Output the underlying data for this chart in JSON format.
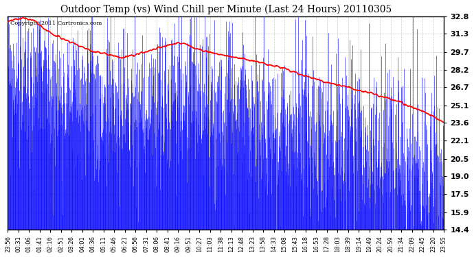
{
  "title": "Outdoor Temp (vs) Wind Chill per Minute (Last 24 Hours) 20110305",
  "copyright_text": "Copyright 2011 Cartronics.com",
  "background_color": "#ffffff",
  "plot_bg_color": "#ffffff",
  "grid_color": "#c8c8c8",
  "blue_color": "#0000ff",
  "red_color": "#ff0000",
  "yticks": [
    14.4,
    15.9,
    17.5,
    19.0,
    20.5,
    22.1,
    23.6,
    25.1,
    26.7,
    28.2,
    29.7,
    31.3,
    32.8
  ],
  "ylim": [
    14.4,
    32.8
  ],
  "num_minutes": 1440,
  "x_tick_labels": [
    "23:56",
    "00:31",
    "01:06",
    "01:41",
    "02:16",
    "02:51",
    "03:26",
    "04:01",
    "04:36",
    "05:11",
    "05:46",
    "06:21",
    "06:56",
    "07:31",
    "08:06",
    "08:41",
    "09:16",
    "09:51",
    "10:27",
    "11:03",
    "11:38",
    "12:13",
    "12:48",
    "13:23",
    "13:58",
    "14:33",
    "15:08",
    "15:43",
    "16:18",
    "16:53",
    "17:28",
    "18:03",
    "18:39",
    "19:14",
    "19:49",
    "20:24",
    "20:59",
    "21:34",
    "22:09",
    "22:45",
    "23:20",
    "23:55"
  ],
  "wc_keypoints_x": [
    0,
    40,
    80,
    150,
    280,
    380,
    540,
    580,
    620,
    700,
    800,
    900,
    1000,
    1100,
    1200,
    1300,
    1380,
    1440
  ],
  "wc_keypoints_y": [
    32.3,
    32.7,
    32.5,
    31.2,
    29.8,
    29.2,
    30.4,
    30.5,
    30.0,
    29.5,
    29.0,
    28.4,
    27.5,
    26.8,
    26.2,
    25.3,
    24.5,
    23.6
  ],
  "ot_keypoints_x": [
    0,
    100,
    200,
    300,
    400,
    500,
    560,
    650,
    750,
    850,
    1000,
    1100,
    1200,
    1300,
    1380,
    1440
  ],
  "ot_keypoints_y": [
    27.5,
    26.8,
    26.0,
    25.2,
    24.8,
    24.5,
    26.5,
    25.0,
    24.5,
    23.8,
    22.5,
    22.0,
    21.0,
    20.0,
    19.2,
    19.5
  ],
  "title_fontsize": 10,
  "copyright_fontsize": 6,
  "ytick_fontsize": 8,
  "xtick_fontsize": 6
}
